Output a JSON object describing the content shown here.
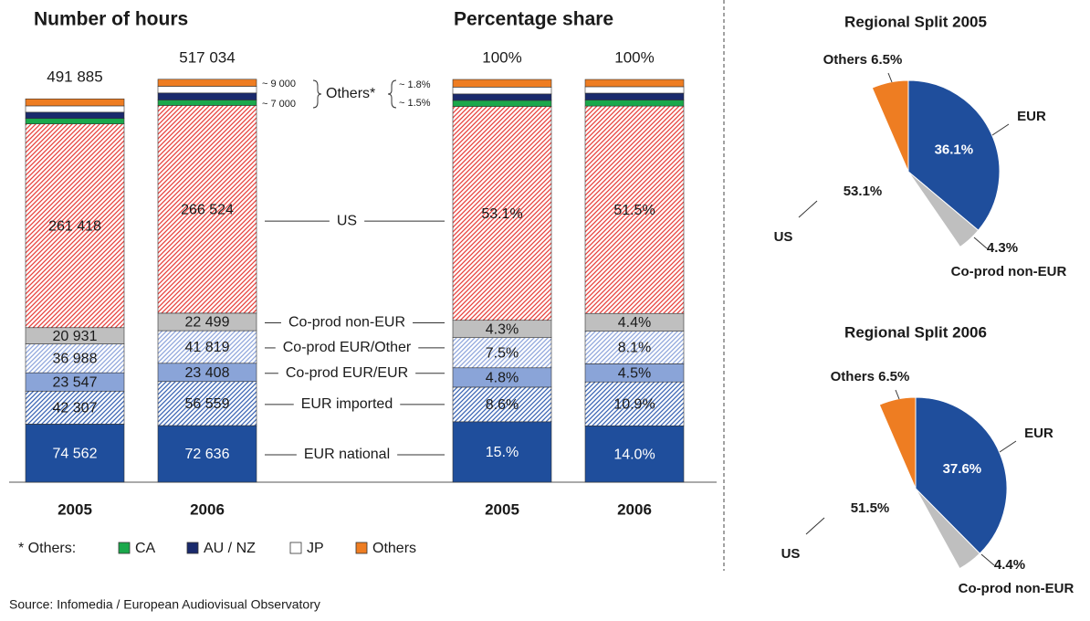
{
  "chart_data": [
    {
      "type": "stacked-bar",
      "title": "Number of hours",
      "categories": [
        "2005",
        "2006"
      ],
      "ylim": [
        0,
        600000
      ],
      "totals": [
        491885,
        517034
      ],
      "total_labels": [
        "491 885",
        "517 034"
      ],
      "series": [
        {
          "name": "EUR national",
          "color": "#1f4e9c",
          "values": [
            74562,
            72636
          ],
          "value_labels": [
            "74 562",
            "72 636"
          ]
        },
        {
          "name": "EUR imported",
          "color": "#3a64b4",
          "hatch": true,
          "values": [
            42307,
            56559
          ],
          "value_labels": [
            "42 307",
            "56 559"
          ]
        },
        {
          "name": "Co-prod EUR/EUR",
          "color": "#8aa4d8",
          "values": [
            23547,
            23408
          ],
          "value_labels": [
            "23 547",
            "23 408"
          ]
        },
        {
          "name": "Co-prod EUR/Other",
          "color": "#8fa6dc",
          "hatch": true,
          "values": [
            36988,
            41819
          ],
          "value_labels": [
            "36 988",
            "41 819"
          ]
        },
        {
          "name": "Co-prod non-EUR",
          "color": "#bfbfbf",
          "values": [
            20931,
            22499
          ],
          "value_labels": [
            "20 931",
            "22 499"
          ]
        },
        {
          "name": "US",
          "color": "#e8413c",
          "hatch": true,
          "values": [
            261418,
            266524
          ],
          "value_labels": [
            "261 418",
            "266 524"
          ]
        },
        {
          "name": "CA",
          "color": "#1aa84b",
          "values": [
            7000,
            7000
          ]
        },
        {
          "name": "AU / NZ",
          "color": "#1a2a6c",
          "values": [
            8000,
            9000
          ]
        },
        {
          "name": "JP",
          "color": "#ffffff",
          "values": [
            8132,
            8589
          ]
        },
        {
          "name": "Others",
          "color": "#ee7d22",
          "values": [
            9000,
            9000
          ]
        }
      ],
      "annotations": [
        "~ 9 000",
        "~ 7 000"
      ],
      "group_label": "Others*",
      "legend_title": "* Others:"
    },
    {
      "type": "stacked-bar",
      "title": "Percentage share",
      "categories": [
        "2005",
        "2006"
      ],
      "ylim": [
        0,
        100
      ],
      "totals": [
        100,
        100
      ],
      "total_labels": [
        "100%",
        "100%"
      ],
      "series": [
        {
          "color": "#1f4e9c",
          "values": [
            15,
            14.0
          ],
          "value_labels": [
            "15.%",
            "14.0%"
          ]
        },
        {
          "color": "#3a64b4",
          "hatch": true,
          "values": [
            8.6,
            10.9
          ],
          "value_labels": [
            "8.6%",
            "10.9%"
          ]
        },
        {
          "color": "#8aa4d8",
          "values": [
            4.8,
            4.5
          ],
          "value_labels": [
            "4.8%",
            "4.5%"
          ]
        },
        {
          "color": "#8fa6dc",
          "hatch": true,
          "values": [
            7.5,
            8.1
          ],
          "value_labels": [
            "7.5%",
            "8.1%"
          ]
        },
        {
          "color": "#bfbfbf",
          "values": [
            4.3,
            4.4
          ],
          "value_labels": [
            "4.3%",
            "4.4%"
          ]
        },
        {
          "color": "#e8413c",
          "hatch": true,
          "values": [
            53.1,
            51.5
          ],
          "value_labels": [
            "53.1%",
            "51.5%"
          ]
        },
        {
          "color": "#1aa84b",
          "values": [
            1.5,
            1.5
          ]
        },
        {
          "color": "#1a2a6c",
          "values": [
            1.6,
            1.7
          ]
        },
        {
          "color": "#ffffff",
          "values": [
            1.7,
            1.6
          ]
        },
        {
          "color": "#ee7d22",
          "values": [
            1.9,
            1.8
          ]
        }
      ],
      "annotations": [
        "~ 1.8%",
        "~ 1.5%"
      ]
    },
    {
      "type": "pie",
      "title": "Regional Split 2005",
      "categories": [
        "EUR",
        "Co-prod non-EUR",
        "US",
        "Others"
      ],
      "values": [
        36.1,
        4.3,
        53.1,
        6.5
      ],
      "value_labels": [
        "36.1%",
        "4.3%",
        "53.1%",
        "6.5%"
      ],
      "colors": [
        "#1f4e9c",
        "#bfbfbf",
        "#ffffff",
        "#ee7d22"
      ]
    },
    {
      "type": "pie",
      "title": "Regional Split 2006",
      "categories": [
        "EUR",
        "Co-prod non-EUR",
        "US",
        "Others"
      ],
      "values": [
        37.6,
        4.4,
        51.5,
        6.5
      ],
      "value_labels": [
        "37.6%",
        "4.4%",
        "51.5%",
        "6.5%"
      ],
      "colors": [
        "#1f4e9c",
        "#bfbfbf",
        "#ffffff",
        "#ee7d22"
      ]
    }
  ],
  "source": "Source: Infomedia / European Audiovisual Observatory"
}
